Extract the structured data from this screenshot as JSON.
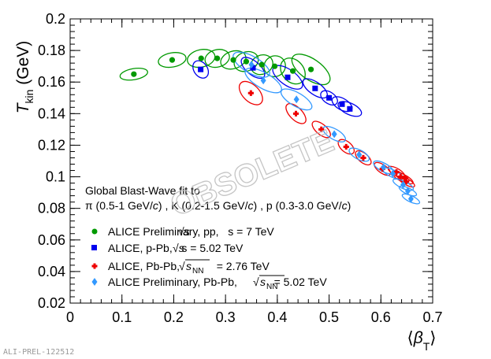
{
  "chart_data": {
    "type": "scatter",
    "title": "",
    "xlabel": "⟨β_T⟩",
    "ylabel": "T_kin (GeV)",
    "xlim": [
      0,
      0.7
    ],
    "ylim": [
      0.02,
      0.2
    ],
    "x_ticks": [
      {
        "v": 0,
        "label": "0"
      },
      {
        "v": 0.1,
        "label": "0.1"
      },
      {
        "v": 0.2,
        "label": "0.2"
      },
      {
        "v": 0.3,
        "label": "0.3"
      },
      {
        "v": 0.4,
        "label": "0.4"
      },
      {
        "v": 0.5,
        "label": "0.5"
      },
      {
        "v": 0.6,
        "label": "0.6"
      },
      {
        "v": 0.7,
        "label": "0.7"
      }
    ],
    "y_ticks": [
      {
        "v": 0.02,
        "label": "0.02"
      },
      {
        "v": 0.04,
        "label": "0.04"
      },
      {
        "v": 0.06,
        "label": "0.06"
      },
      {
        "v": 0.08,
        "label": "0.08"
      },
      {
        "v": 0.1,
        "label": "0.1"
      },
      {
        "v": 0.12,
        "label": "0.12"
      },
      {
        "v": 0.14,
        "label": "0.14"
      },
      {
        "v": 0.16,
        "label": "0.16"
      },
      {
        "v": 0.18,
        "label": "0.18"
      },
      {
        "v": 0.2,
        "label": "0.2"
      }
    ],
    "grid": false,
    "legend_position": "bottom-left",
    "annotation_lines": [
      "Global Blast-Wave fit to",
      "π (0.5-1 GeV/c) , K (0.2-1.5 GeV/c) , p (0.3-3.0 GeV/c)"
    ],
    "watermark": "OBSOLETE",
    "footer_label": "ALI-PREL-122512",
    "series": [
      {
        "name": "ALICE Preliminary, pp, √s = 7 TeV",
        "legend_text": "ALICE Preliminary, pp,   s = 7 TeV",
        "marker": "circle",
        "color": "#009900",
        "points": [
          [
            0.123,
            0.165
          ],
          [
            0.197,
            0.174
          ],
          [
            0.253,
            0.175
          ],
          [
            0.284,
            0.175
          ],
          [
            0.315,
            0.174
          ],
          [
            0.34,
            0.173
          ],
          [
            0.37,
            0.171
          ],
          [
            0.395,
            0.17
          ],
          [
            0.43,
            0.167
          ],
          [
            0.465,
            0.168
          ]
        ],
        "ellipses": [
          [
            0.027,
            0.0035,
            -10
          ],
          [
            0.027,
            0.0045,
            -10
          ],
          [
            0.027,
            0.0055,
            -12
          ],
          [
            0.024,
            0.0055,
            -15
          ],
          [
            0.025,
            0.0055,
            -18
          ],
          [
            0.024,
            0.006,
            -22
          ],
          [
            0.022,
            0.006,
            -25
          ],
          [
            0.021,
            0.0065,
            -30
          ],
          [
            0.021,
            0.009,
            -40
          ],
          [
            0.02,
            0.014,
            -55
          ]
        ]
      },
      {
        "name": "ALICE, p-Pb, √s = 5.02 TeV",
        "legend_text": "ALICE, p-Pb,   s = 5.02 TeV",
        "marker": "square",
        "color": "#0000ee",
        "points": [
          [
            0.252,
            0.168
          ],
          [
            0.353,
            0.169
          ],
          [
            0.42,
            0.163
          ],
          [
            0.473,
            0.156
          ],
          [
            0.5,
            0.15
          ],
          [
            0.525,
            0.146
          ],
          [
            0.54,
            0.143
          ]
        ],
        "ellipses": [
          [
            0.013,
            0.006,
            -35
          ],
          [
            0.013,
            0.009,
            -50
          ],
          [
            0.015,
            0.011,
            -55
          ],
          [
            0.012,
            0.009,
            -55
          ],
          [
            0.011,
            0.006,
            -55
          ],
          [
            0.011,
            0.007,
            -60
          ],
          [
            0.011,
            0.008,
            -65
          ]
        ]
      },
      {
        "name": "ALICE, Pb-Pb, √sNN = 2.76 TeV",
        "legend_text": "ALICE, Pb-Pb,            = 2.76 TeV",
        "marker": "cross",
        "color": "#ee0000",
        "points": [
          [
            0.349,
            0.153
          ],
          [
            0.436,
            0.14
          ],
          [
            0.485,
            0.13
          ],
          [
            0.533,
            0.119
          ],
          [
            0.566,
            0.112
          ],
          [
            0.603,
            0.105
          ],
          [
            0.63,
            0.103
          ],
          [
            0.638,
            0.1
          ],
          [
            0.646,
            0.099
          ],
          [
            0.649,
            0.097
          ]
        ],
        "ellipses": [
          [
            0.016,
            0.009,
            -45
          ],
          [
            0.012,
            0.008,
            -45
          ],
          [
            0.01,
            0.007,
            -50
          ],
          [
            0.01,
            0.006,
            -50
          ],
          [
            0.009,
            0.006,
            -50
          ],
          [
            0.008,
            0.006,
            -55
          ],
          [
            0.007,
            0.006,
            -60
          ],
          [
            0.007,
            0.006,
            -60
          ],
          [
            0.006,
            0.006,
            -60
          ],
          [
            0.006,
            0.006,
            -60
          ]
        ]
      },
      {
        "name": "ALICE Preliminary, Pb-Pb, √sNN = 5.02 TeV",
        "legend_text": "ALICE Preliminary, Pb-Pb,            = 5.02 TeV",
        "marker": "diamond",
        "color": "#3399ff",
        "points": [
          [
            0.35,
            0.171
          ],
          [
            0.373,
            0.161
          ],
          [
            0.437,
            0.149
          ],
          [
            0.51,
            0.127
          ],
          [
            0.558,
            0.114
          ],
          [
            0.605,
            0.106
          ],
          [
            0.623,
            0.102
          ],
          [
            0.643,
            0.095
          ],
          [
            0.652,
            0.091
          ],
          [
            0.658,
            0.086
          ]
        ],
        "ellipses": [
          [
            0.016,
            0.013,
            -60
          ],
          [
            0.015,
            0.013,
            -60
          ],
          [
            0.013,
            0.011,
            -60
          ],
          [
            0.01,
            0.008,
            -60
          ],
          [
            0.009,
            0.007,
            -62
          ],
          [
            0.008,
            0.007,
            -62
          ],
          [
            0.007,
            0.007,
            -65
          ],
          [
            0.007,
            0.007,
            -65
          ],
          [
            0.006,
            0.006,
            -65
          ],
          [
            0.006,
            0.006,
            -65
          ]
        ]
      }
    ]
  }
}
